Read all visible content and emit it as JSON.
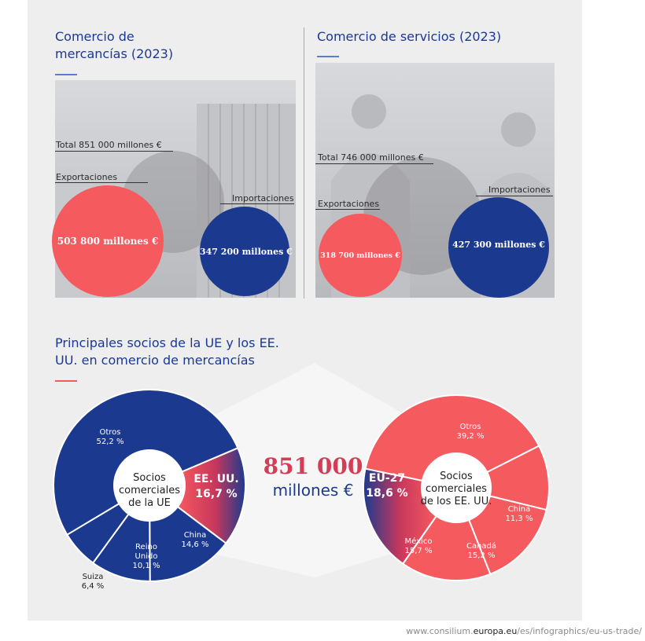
{
  "goods": {
    "title_line1": "Comercio de",
    "title_line2": "mercancías (2023)",
    "total": "Total 851 000 millones €",
    "exports_label": "Exportaciones",
    "imports_label": "Importaciones",
    "exports_value": "503 800 millones €",
    "imports_value": "347 200 millones €"
  },
  "services": {
    "title": "Comercio de servicios (2023)",
    "total": "Total 746 000 millones €",
    "exports_label": "Exportaciones",
    "imports_label": "Importaciones",
    "exports_value": "318 700 millones €",
    "imports_value": "427 300 millones €"
  },
  "partners": {
    "title_line1": "Principales socios de la UE y los EE.",
    "title_line2": "UU. en comercio de mercancías"
  },
  "center_value_num": "851 000",
  "center_value_unit": "millones €",
  "colors": {
    "blue": "#1b3a8f",
    "red": "#f55a5f",
    "title_blue": "#1a3897"
  },
  "chart_data": [
    {
      "type": "pie",
      "title": "Socios comerciales de la UE",
      "center_label": [
        "Socios",
        "comerciales",
        "de la UE"
      ],
      "slices": [
        {
          "name": "EE. UU.",
          "value": 16.7,
          "label": "16,7 %"
        },
        {
          "name": "China",
          "value": 14.6,
          "label": "14,6 %"
        },
        {
          "name": "Reino Unido",
          "value": 10.1,
          "label": "10,1 %"
        },
        {
          "name": "Suiza",
          "value": 6.4,
          "label": "6,4 %"
        },
        {
          "name": "Otros",
          "value": 52.2,
          "label": "52,2 %"
        }
      ]
    },
    {
      "type": "pie",
      "title": "Socios comerciales de los EE. UU.",
      "center_label": [
        "Socios",
        "comerciales",
        "de los EE. UU."
      ],
      "slices": [
        {
          "name": "EU-27",
          "value": 18.6,
          "label": "18,6 %"
        },
        {
          "name": "Otros",
          "value": 39.2,
          "label": "39,2 %"
        },
        {
          "name": "China",
          "value": 11.3,
          "label": "11,3 %"
        },
        {
          "name": "Canadá",
          "value": 15.2,
          "label": "15,2 %"
        },
        {
          "name": "México",
          "value": 15.7,
          "label": "15,7 %"
        }
      ]
    }
  ],
  "footer": {
    "pre": "www.consilium.",
    "domain": "europa.eu",
    "post": "/es/infographics/eu-us-trade/"
  }
}
